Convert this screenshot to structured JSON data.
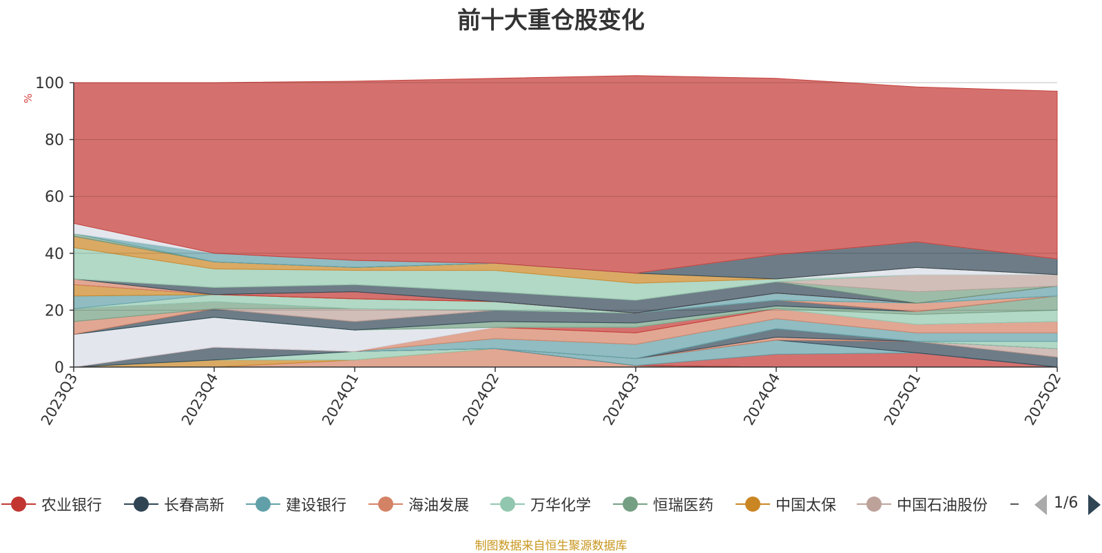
{
  "title": "前十大重仓股变化",
  "source_note": "制图数据来自恒生聚源数据库",
  "legend": {
    "pager_text": "1/6",
    "items": [
      {
        "label": "农业银行",
        "color": "#c23531"
      },
      {
        "label": "长春高新",
        "color": "#2f4554"
      },
      {
        "label": "建设银行",
        "color": "#61a0a8"
      },
      {
        "label": "海油发展",
        "color": "#d48265"
      },
      {
        "label": "万华化学",
        "color": "#91c7ae"
      },
      {
        "label": "恒瑞医药",
        "color": "#749f83"
      },
      {
        "label": "中国太保",
        "color": "#ca8622"
      },
      {
        "label": "中国石油股份",
        "color": "#bda29a"
      }
    ]
  },
  "chart_data": {
    "type": "area",
    "stacked": true,
    "title": "前十大重仓股变化",
    "ylabel": "%",
    "ylim": [
      0,
      100
    ],
    "yticks": [
      0,
      20,
      40,
      60,
      80,
      100
    ],
    "grid": true,
    "categories": [
      "2023Q3",
      "2023Q4",
      "2024Q1",
      "2024Q2",
      "2024Q3",
      "2024Q4",
      "2025Q1",
      "2025Q2"
    ],
    "series": [
      {
        "name": "",
        "color": "#d48265",
        "values": [
          0,
          0,
          2.5,
          6.5,
          0.5,
          0,
          0,
          0
        ]
      },
      {
        "name": "",
        "color": "#ca8622",
        "values": [
          0,
          2.5,
          0,
          0,
          0,
          0,
          0,
          0
        ]
      },
      {
        "name": "",
        "color": "#91c7ae",
        "values": [
          0,
          0,
          3,
          0,
          0,
          0,
          0,
          0
        ]
      },
      {
        "name": "",
        "color": "#2f4554",
        "values": [
          0,
          4.5,
          0,
          0,
          0,
          0,
          0,
          0
        ]
      },
      {
        "name": "",
        "color": "#c23531",
        "values": [
          0,
          0,
          0,
          0,
          0,
          4.5,
          5,
          0
        ]
      },
      {
        "name": "",
        "color": "#61a0a8",
        "values": [
          0,
          0,
          0,
          0,
          2.5,
          5,
          0,
          0
        ]
      },
      {
        "name": "",
        "color": "#2f4554",
        "values": [
          0,
          0,
          0,
          0,
          0,
          0,
          4,
          3.5
        ]
      },
      {
        "name": "",
        "color": "#d48265",
        "values": [
          0,
          0,
          0,
          0,
          0,
          1,
          0,
          0
        ]
      },
      {
        "name": "",
        "color": "#bda29a",
        "values": [
          0,
          0,
          0,
          0,
          0,
          0,
          0,
          3
        ]
      },
      {
        "name": "",
        "color": "#2f4554",
        "values": [
          0,
          0,
          0,
          0,
          0,
          3,
          0,
          0
        ]
      },
      {
        "name": "",
        "color": "#91c7ae",
        "values": [
          0,
          0,
          0,
          0,
          0,
          0,
          0,
          2.5
        ]
      },
      {
        "name": "",
        "color": "#61a0a8",
        "values": [
          0,
          0,
          0,
          3.5,
          5,
          3.5,
          3,
          3
        ]
      },
      {
        "name": "",
        "color": "#d48265",
        "values": [
          0,
          0,
          0,
          4,
          4,
          3.5,
          3,
          4
        ]
      },
      {
        "name": "",
        "color": "#c23531",
        "values": [
          0,
          0,
          0,
          0,
          2,
          0,
          0,
          0
        ]
      },
      {
        "name": "",
        "color": "#d7dde5",
        "values": [
          11.5,
          10.5,
          7.5,
          0,
          0,
          0,
          0,
          0
        ]
      },
      {
        "name": "",
        "color": "#91c7ae",
        "values": [
          0,
          0,
          0,
          0,
          0,
          0,
          3.5,
          4
        ]
      },
      {
        "name": "",
        "color": "#749f83",
        "values": [
          0,
          0,
          0,
          2,
          1.5,
          1,
          1,
          5
        ]
      },
      {
        "name": "",
        "color": "#2f4554",
        "values": [
          0,
          3,
          3,
          4,
          3.5,
          2,
          0,
          0
        ]
      },
      {
        "name": "",
        "color": "#d48265",
        "values": [
          4.5,
          0,
          0,
          0,
          0,
          0,
          3,
          0
        ]
      },
      {
        "name": "",
        "color": "#bda29a",
        "values": [
          0,
          0,
          4.5,
          0,
          0,
          0,
          0,
          0
        ]
      },
      {
        "name": "",
        "color": "#749f83",
        "values": [
          4.5,
          2.5,
          0,
          0,
          0,
          0,
          0,
          0
        ]
      },
      {
        "name": "",
        "color": "#91c7ae",
        "values": [
          0,
          2.5,
          3.5,
          3,
          0,
          0,
          0,
          0
        ]
      },
      {
        "name": "",
        "color": "#61a0a8",
        "values": [
          4.5,
          0,
          0,
          0,
          0,
          2.5,
          0,
          3.5
        ]
      },
      {
        "name": "",
        "color": "#ca8622",
        "values": [
          4,
          0,
          0,
          0,
          0,
          0,
          0,
          0
        ]
      },
      {
        "name": "",
        "color": "#c23531",
        "values": [
          0,
          0,
          2.5,
          0,
          0,
          0,
          0,
          0
        ]
      },
      {
        "name": "",
        "color": "#d48265",
        "values": [
          2,
          0,
          0,
          0,
          0,
          0,
          0,
          0
        ]
      },
      {
        "name": "",
        "color": "#2f4554",
        "values": [
          0,
          2.5,
          2.5,
          3.5,
          4.5,
          4,
          0,
          0
        ]
      },
      {
        "name": "",
        "color": "#749f83",
        "values": [
          0,
          0,
          0,
          0,
          0,
          0,
          4,
          0
        ]
      },
      {
        "name": "",
        "color": "#bda29a",
        "values": [
          0,
          0,
          0,
          0,
          0,
          0,
          6,
          4
        ]
      },
      {
        "name": "",
        "color": "#91c7ae",
        "values": [
          11,
          6.5,
          5,
          7.5,
          6,
          1,
          0,
          0
        ]
      },
      {
        "name": "",
        "color": "#d7dde5",
        "values": [
          0,
          0,
          0,
          0,
          0,
          0,
          2.5,
          0
        ]
      },
      {
        "name": "",
        "color": "#ca8622",
        "values": [
          4,
          2.5,
          1,
          2.5,
          3.5,
          0,
          0,
          0
        ]
      },
      {
        "name": "",
        "color": "#2f4554",
        "values": [
          0,
          0,
          0,
          0,
          0,
          8.5,
          9,
          5.5
        ]
      },
      {
        "name": "",
        "color": "#749f83",
        "values": [
          1,
          0,
          0,
          0,
          0,
          0,
          0,
          0
        ]
      },
      {
        "name": "",
        "color": "#61a0a8",
        "values": [
          0,
          3,
          2.5,
          0,
          0,
          0,
          0,
          0
        ]
      },
      {
        "name": "",
        "color": "#d7dde5",
        "values": [
          3.5,
          0,
          0,
          0,
          0,
          0,
          0,
          0
        ]
      },
      {
        "name": "",
        "color": "#c23531",
        "values": [
          49.5,
          60,
          63,
          65,
          69.5,
          62,
          54.5,
          59
        ]
      }
    ]
  }
}
